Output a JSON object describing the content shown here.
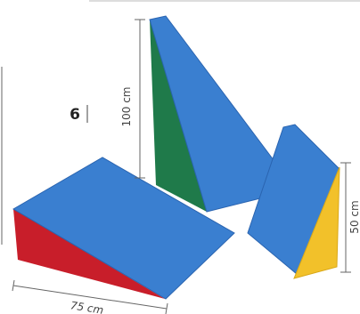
{
  "number": "6",
  "dimensions": {
    "height_large": "100 cm",
    "height_small": "50 cm",
    "length": "75 cm"
  }
}
